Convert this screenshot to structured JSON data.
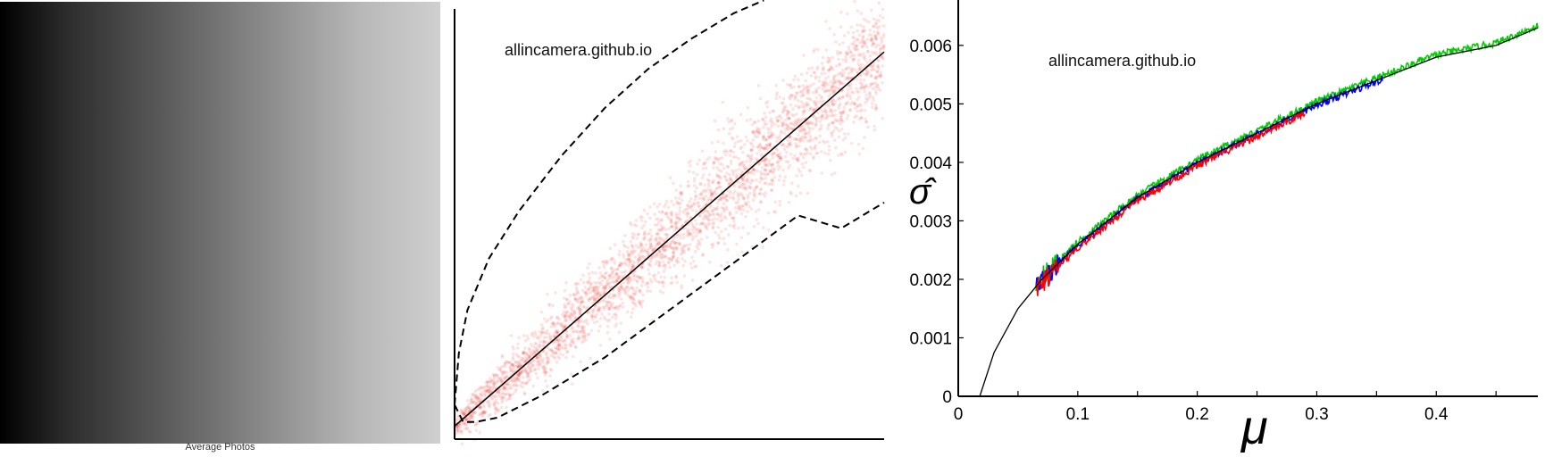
{
  "panels": {
    "photo": {
      "caption": "Average Photos"
    },
    "scatter": {
      "watermark": "allincamera.github.io"
    },
    "noise": {
      "watermark": "allincamera.github.io"
    }
  },
  "chart_data": [
    {
      "type": "scatter",
      "description_ref": "scatter",
      "title": "",
      "xlabel": "",
      "ylabel": "",
      "xlim": [
        0,
        1
      ],
      "ylim": [
        0,
        1
      ],
      "series": [
        {
          "kind": "points",
          "color": "#e8201c"
        },
        {
          "kind": "fit-line",
          "color": "#000000",
          "x": [
            0,
            1
          ],
          "y": [
            0.03,
            0.9
          ]
        },
        {
          "kind": "bound-dashed",
          "color": "#000000",
          "x": [
            0.0,
            0.01,
            0.03,
            0.08,
            0.15,
            0.25,
            0.35,
            0.45,
            0.55,
            0.65,
            0.72
          ],
          "y": [
            0.08,
            0.2,
            0.3,
            0.42,
            0.53,
            0.66,
            0.77,
            0.86,
            0.93,
            0.99,
            1.02
          ]
        },
        {
          "kind": "bound-dashed",
          "color": "#000000",
          "x": [
            0.0,
            0.02,
            0.05,
            0.1,
            0.2,
            0.35,
            0.5,
            0.65,
            0.8,
            0.9,
            1.0
          ],
          "y": [
            0.08,
            0.04,
            0.04,
            0.05,
            0.1,
            0.19,
            0.3,
            0.41,
            0.52,
            0.49,
            0.55
          ]
        }
      ]
    },
    {
      "type": "line",
      "title": "",
      "xlabel": "μ",
      "ylabel": "σ̂",
      "xlim": [
        0,
        0.485
      ],
      "ylim": [
        0,
        0.0067
      ],
      "xticks": [
        0,
        0.1,
        0.2,
        0.3,
        0.4
      ],
      "xtick_labels": [
        "0",
        "0.1",
        "0.2",
        "0.3",
        "0.4"
      ],
      "yticks": [
        0,
        0.001,
        0.002,
        0.003,
        0.004,
        0.005,
        0.006
      ],
      "ytick_labels": [
        "0",
        "0.001",
        "0.002",
        "0.003",
        "0.004",
        "0.005",
        "0.006"
      ],
      "series": [
        {
          "color": "#ff0000",
          "x_range": [
            0.065,
            0.29
          ]
        },
        {
          "color": "#0000ff",
          "x_range": [
            0.065,
            0.355
          ]
        },
        {
          "color": "#00cc00",
          "x_range": [
            0.065,
            0.485
          ]
        },
        {
          "color": "#000000",
          "kind": "fit",
          "x": [
            0.018,
            0.03,
            0.05,
            0.07,
            0.1,
            0.15,
            0.2,
            0.25,
            0.3,
            0.35,
            0.4,
            0.45,
            0.485
          ],
          "y": [
            0,
            0.00075,
            0.0015,
            0.002,
            0.0026,
            0.0034,
            0.004,
            0.0045,
            0.005,
            0.0054,
            0.0058,
            0.006,
            0.0063
          ]
        }
      ]
    }
  ]
}
